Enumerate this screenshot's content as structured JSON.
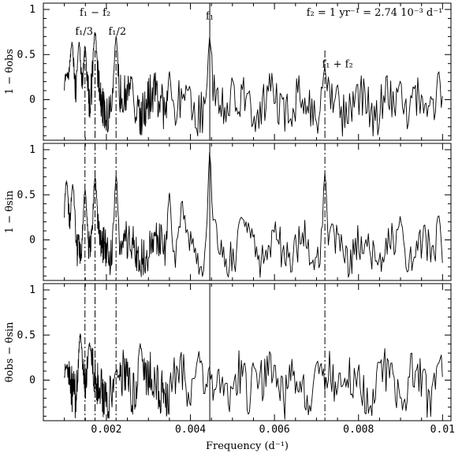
{
  "chart_data": {
    "type": "line",
    "xlabel": "Frequency (d⁻¹)",
    "xlim": [
      0.0005,
      0.0102
    ],
    "x_ticks": [
      "0.002",
      "0.004",
      "0.006",
      "0.008",
      "0.01"
    ],
    "x_tick_values": [
      0.002,
      0.004,
      0.006,
      0.008,
      0.01
    ],
    "f1": 0.00446,
    "alias_lines": [
      0.00149,
      0.00173,
      0.00223,
      0.0072
    ],
    "panels": [
      {
        "ylabel": "1 − θobs",
        "ylim": [
          -0.45,
          1.07
        ],
        "y_ticks": [
          "1",
          "0.5",
          "0"
        ],
        "y_tick_values": [
          1,
          0.5,
          0
        ],
        "annotations": [
          {
            "text": "f₁ − f₂",
            "x": 0.00173,
            "y": 0.93
          },
          {
            "text": "f₁/3",
            "x": 0.00147,
            "y": 0.72
          },
          {
            "text": "f₁/2",
            "x": 0.00226,
            "y": 0.72
          },
          {
            "text": "f₁",
            "x": 0.00446,
            "y": 0.89
          },
          {
            "text": "f₁ + f₂",
            "x": 0.0075,
            "y": 0.36
          },
          {
            "text": "f₂ = 1 yr⁻¹ = 2.74 10⁻³ d⁻¹",
            "x": 0.01,
            "y": 0.93
          }
        ],
        "series": [
          {
            "x_range": [
              0.001,
              0.01
            ],
            "peaks": [
              [
                0.00105,
                0.28
              ],
              [
                0.00118,
                0.62
              ],
              [
                0.00135,
                0.63
              ],
              [
                0.00149,
                0.58
              ],
              [
                0.00173,
                0.74
              ],
              [
                0.00223,
                0.7
              ],
              [
                0.0026,
                0.25
              ],
              [
                0.0035,
                0.3
              ],
              [
                0.00446,
                0.7
              ],
              [
                0.005,
                0.25
              ],
              [
                0.0072,
                0.35
              ],
              [
                0.009,
                0.2
              ],
              [
                0.0099,
                0.32
              ]
            ],
            "base": -0.05,
            "amp": 0.28,
            "seed": 11
          }
        ]
      },
      {
        "ylabel": "1 − θsin",
        "ylim": [
          -0.45,
          1.07
        ],
        "y_ticks": [
          "1",
          "0.5",
          "0"
        ],
        "y_tick_values": [
          1,
          0.5,
          0
        ],
        "annotations": [],
        "series": [
          {
            "x_range": [
              0.001,
              0.01
            ],
            "peaks": [
              [
                0.00105,
                0.65
              ],
              [
                0.0012,
                0.6
              ],
              [
                0.00149,
                0.55
              ],
              [
                0.00173,
                0.68
              ],
              [
                0.00223,
                0.7
              ],
              [
                0.0035,
                0.5
              ],
              [
                0.0038,
                0.45
              ],
              [
                0.00446,
                0.96
              ],
              [
                0.0052,
                0.28
              ],
              [
                0.0072,
                0.75
              ],
              [
                0.009,
                0.25
              ],
              [
                0.0099,
                0.28
              ]
            ],
            "base": -0.1,
            "amp": 0.24,
            "seed": 23
          }
        ]
      },
      {
        "ylabel": "θobs − θsin",
        "ylim": [
          -0.45,
          1.07
        ],
        "y_ticks": [
          "1",
          "0.5",
          "0"
        ],
        "y_tick_values": [
          1,
          0.5,
          0
        ],
        "annotations": [],
        "series": [
          {
            "x_range": [
              0.001,
              0.01
            ],
            "peaks": [
              [
                0.00105,
                0.15
              ],
              [
                0.00138,
                0.5
              ],
              [
                0.0016,
                0.4
              ],
              [
                0.00223,
                0.1
              ],
              [
                0.0028,
                0.4
              ],
              [
                0.0042,
                0.3
              ],
              [
                0.0055,
                0.18
              ],
              [
                0.007,
                0.2
              ],
              [
                0.0085,
                0.2
              ],
              [
                0.0099,
                0.2
              ]
            ],
            "base": -0.05,
            "amp": 0.3,
            "seed": 37
          }
        ]
      }
    ]
  }
}
